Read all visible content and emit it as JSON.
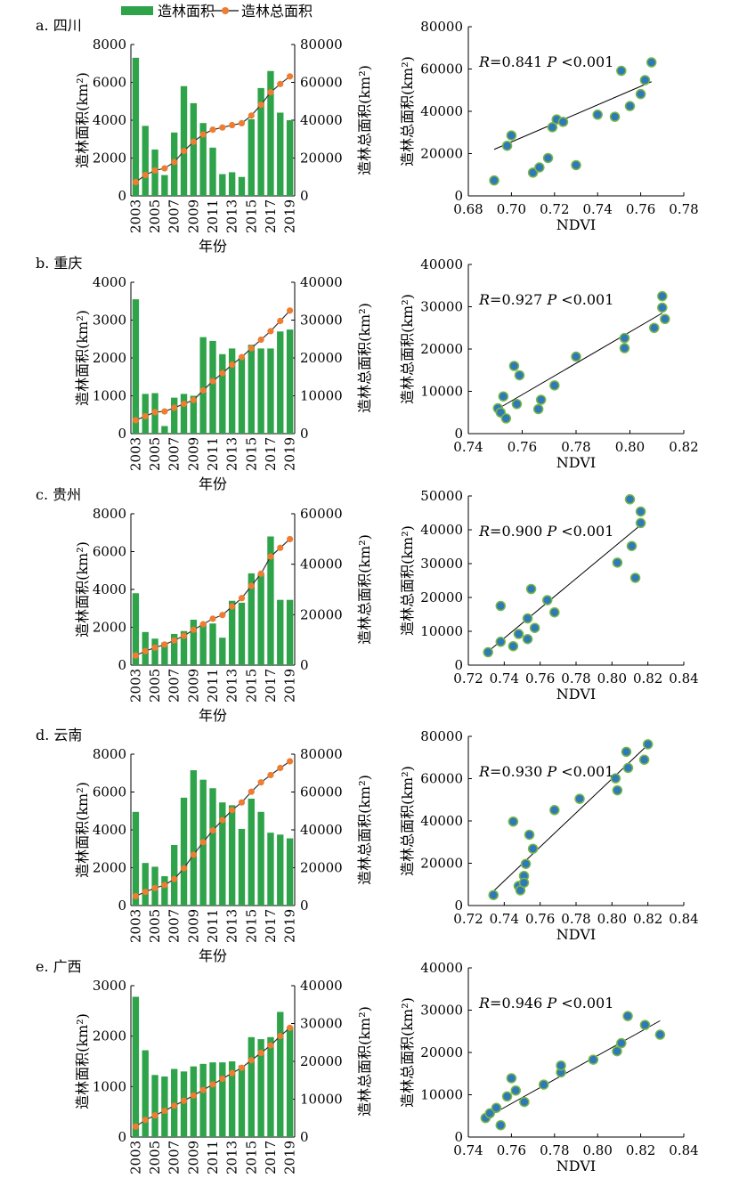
{
  "legend": {
    "bar_label": "造林面积",
    "line_label": "造林总面积",
    "bar_color": "#2ea34a",
    "line_color": "#ee7d31",
    "point_color": "#2f79b8",
    "point_edge": "#7ab843"
  },
  "chart_data": [
    {
      "type": "bar",
      "title": "a. 四川",
      "categories": [
        "2003",
        "2004",
        "2005",
        "2006",
        "2007",
        "2008",
        "2009",
        "2010",
        "2011",
        "2012",
        "2013",
        "2014",
        "2015",
        "2016",
        "2017",
        "2018",
        "2019"
      ],
      "x_tick_labels": [
        "2003",
        "2005",
        "2007",
        "2009",
        "2011",
        "2013",
        "2015",
        "2017",
        "2019"
      ],
      "xlabel": "年份",
      "ylabel": "造林面积(km²)",
      "y2label": "造林总面积(km²)",
      "ylim": [
        0,
        8000
      ],
      "yticks": [
        0,
        2000,
        4000,
        6000,
        8000
      ],
      "y2lim": [
        0,
        80000
      ],
      "y2ticks": [
        0,
        20000,
        40000,
        60000,
        80000
      ],
      "series": [
        {
          "name": "造林面积",
          "kind": "bar",
          "values": [
            7300,
            3700,
            2450,
            1100,
            3350,
            5800,
            4900,
            3850,
            2550,
            1150,
            1250,
            1000,
            4050,
            5700,
            6600,
            4400,
            4000
          ]
        },
        {
          "name": "造林总面积",
          "kind": "line",
          "values": [
            7300,
            11000,
            13450,
            14550,
            17900,
            23700,
            28600,
            32450,
            35000,
            36150,
            37400,
            38400,
            42450,
            48150,
            54750,
            59150,
            63150
          ]
        }
      ]
    },
    {
      "type": "scatter",
      "xlabel": "NDVI",
      "ylabel": "造林总面积(km²)",
      "xlim": [
        0.68,
        0.78
      ],
      "xticks": [
        "0.68",
        "0.70",
        "0.72",
        "0.74",
        "0.76",
        "0.78"
      ],
      "ylim": [
        0,
        80000
      ],
      "yticks": [
        0,
        20000,
        40000,
        60000,
        80000
      ],
      "annotation": {
        "R_label": "R",
        "R_value": "=0.841",
        "P_label": "P",
        "P_value": "<0.001"
      },
      "points": [
        [
          0.692,
          7300
        ],
        [
          0.698,
          23700
        ],
        [
          0.7,
          28600
        ],
        [
          0.71,
          11000
        ],
        [
          0.713,
          13450
        ],
        [
          0.717,
          17900
        ],
        [
          0.719,
          32450
        ],
        [
          0.721,
          36150
        ],
        [
          0.724,
          35000
        ],
        [
          0.73,
          14550
        ],
        [
          0.74,
          38400
        ],
        [
          0.748,
          37400
        ],
        [
          0.751,
          59150
        ],
        [
          0.755,
          42450
        ],
        [
          0.76,
          48150
        ],
        [
          0.762,
          54750
        ],
        [
          0.765,
          63150
        ]
      ],
      "fit": [
        [
          0.692,
          22000
        ],
        [
          0.765,
          54000
        ]
      ]
    },
    {
      "type": "bar",
      "title": "b. 重庆",
      "categories": [
        "2003",
        "2004",
        "2005",
        "2006",
        "2007",
        "2008",
        "2009",
        "2010",
        "2011",
        "2012",
        "2013",
        "2014",
        "2015",
        "2016",
        "2017",
        "2018",
        "2019"
      ],
      "x_tick_labels": [
        "2003",
        "2005",
        "2007",
        "2009",
        "2011",
        "2013",
        "2015",
        "2017",
        "2019"
      ],
      "xlabel": "年份",
      "ylabel": "造林面积(km²)",
      "y2label": "造林总面积(km²)",
      "ylim": [
        0,
        4000
      ],
      "yticks": [
        0,
        1000,
        2000,
        3000,
        4000
      ],
      "y2lim": [
        0,
        40000
      ],
      "y2ticks": [
        0,
        10000,
        20000,
        30000,
        40000
      ],
      "series": [
        {
          "name": "造林面积",
          "kind": "bar",
          "values": [
            3550,
            1050,
            1070,
            200,
            950,
            1050,
            1000,
            2550,
            2450,
            2100,
            2250,
            2000,
            2350,
            2250,
            2250,
            2700,
            2750
          ]
        },
        {
          "name": "造林总面积",
          "kind": "line",
          "values": [
            3550,
            4600,
            5670,
            5870,
            6820,
            7870,
            8870,
            11420,
            13870,
            15970,
            18220,
            20220,
            22570,
            24820,
            27070,
            29770,
            32520
          ]
        }
      ]
    },
    {
      "type": "scatter",
      "xlabel": "NDVI",
      "ylabel": "造林总面积(km²)",
      "xlim": [
        0.74,
        0.82
      ],
      "xticks": [
        "0.74",
        "0.76",
        "0.78",
        "0.80",
        "0.82"
      ],
      "ylim": [
        0,
        40000
      ],
      "yticks": [
        0,
        10000,
        20000,
        30000,
        40000
      ],
      "annotation": {
        "R_label": "R",
        "R_value": "=0.927",
        "P_label": "P",
        "P_value": "<0.001"
      },
      "points": [
        [
          0.751,
          6000
        ],
        [
          0.752,
          5000
        ],
        [
          0.753,
          8800
        ],
        [
          0.754,
          3600
        ],
        [
          0.757,
          16000
        ],
        [
          0.758,
          7000
        ],
        [
          0.759,
          13800
        ],
        [
          0.766,
          5800
        ],
        [
          0.767,
          8000
        ],
        [
          0.772,
          11400
        ],
        [
          0.78,
          18200
        ],
        [
          0.798,
          22600
        ],
        [
          0.798,
          20200
        ],
        [
          0.809,
          25000
        ],
        [
          0.812,
          32500
        ],
        [
          0.812,
          29800
        ],
        [
          0.813,
          27100
        ]
      ],
      "fit": [
        [
          0.75,
          5500
        ],
        [
          0.812,
          28500
        ]
      ]
    },
    {
      "type": "bar",
      "title": "c. 贵州",
      "categories": [
        "2003",
        "2004",
        "2005",
        "2006",
        "2007",
        "2008",
        "2009",
        "2010",
        "2011",
        "2012",
        "2013",
        "2014",
        "2015",
        "2016",
        "2017",
        "2018",
        "2019"
      ],
      "x_tick_labels": [
        "2003",
        "2005",
        "2007",
        "2009",
        "2011",
        "2013",
        "2015",
        "2017",
        "2019"
      ],
      "xlabel": "年份",
      "ylabel": "造林面积(km²)",
      "y2label": "造林总面积(km²)",
      "ylim": [
        0,
        8000
      ],
      "yticks": [
        0,
        2000,
        4000,
        6000,
        8000
      ],
      "y2lim": [
        0,
        60000
      ],
      "y2ticks": [
        0,
        20000,
        40000,
        60000
      ],
      "series": [
        {
          "name": "造林面积",
          "kind": "bar",
          "values": [
            3800,
            1750,
            1400,
            1200,
            1650,
            1800,
            2400,
            2200,
            2200,
            1450,
            3400,
            3300,
            4850,
            4850,
            6800,
            3450,
            3450
          ]
        },
        {
          "name": "造林总面积",
          "kind": "line",
          "values": [
            3800,
            5550,
            6950,
            8150,
            9800,
            11600,
            14000,
            16200,
            18400,
            19850,
            23250,
            26550,
            31400,
            36250,
            43050,
            46500,
            49950
          ]
        }
      ]
    },
    {
      "type": "scatter",
      "xlabel": "NDVI",
      "ylabel": "造林总面积(km²)",
      "xlim": [
        0.72,
        0.84
      ],
      "xticks": [
        "0.72",
        "0.74",
        "0.76",
        "0.78",
        "0.80",
        "0.82",
        "0.84"
      ],
      "ylim": [
        0,
        50000
      ],
      "yticks": [
        0,
        10000,
        20000,
        30000,
        40000,
        50000
      ],
      "annotation": {
        "R_label": "R",
        "R_value": "=0.900",
        "P_label": "P",
        "P_value": "<0.001"
      },
      "points": [
        [
          0.731,
          3800
        ],
        [
          0.738,
          17500
        ],
        [
          0.738,
          6900
        ],
        [
          0.745,
          5600
        ],
        [
          0.748,
          9200
        ],
        [
          0.753,
          13800
        ],
        [
          0.753,
          7700
        ],
        [
          0.755,
          22500
        ],
        [
          0.757,
          11000
        ],
        [
          0.764,
          19200
        ],
        [
          0.768,
          15600
        ],
        [
          0.803,
          30300
        ],
        [
          0.81,
          49000
        ],
        [
          0.811,
          35200
        ],
        [
          0.813,
          25800
        ],
        [
          0.816,
          45400
        ],
        [
          0.816,
          42000
        ]
      ],
      "fit": [
        [
          0.731,
          4000
        ],
        [
          0.815,
          41000
        ]
      ]
    },
    {
      "type": "bar",
      "title": "d. 云南",
      "categories": [
        "2003",
        "2004",
        "2005",
        "2006",
        "2007",
        "2008",
        "2009",
        "2010",
        "2011",
        "2012",
        "2013",
        "2014",
        "2015",
        "2016",
        "2017",
        "2018",
        "2019"
      ],
      "x_tick_labels": [
        "2003",
        "2005",
        "2007",
        "2009",
        "2011",
        "2013",
        "2015",
        "2017",
        "2019"
      ],
      "xlabel": "年份",
      "ylabel": "造林面积(km²)",
      "y2label": "造林总面积(km²)",
      "ylim": [
        0,
        8000
      ],
      "yticks": [
        0,
        2000,
        4000,
        6000,
        8000
      ],
      "y2lim": [
        0,
        80000
      ],
      "y2ticks": [
        0,
        20000,
        40000,
        60000,
        80000
      ],
      "series": [
        {
          "name": "造林面积",
          "kind": "bar",
          "values": [
            4950,
            2250,
            2050,
            1550,
            3200,
            5700,
            7150,
            6650,
            6200,
            5450,
            5300,
            4050,
            5650,
            4950,
            3850,
            3750,
            3550
          ]
        },
        {
          "name": "造林总面积",
          "kind": "line",
          "values": [
            4950,
            7200,
            9250,
            10800,
            14000,
            19700,
            26850,
            33500,
            39700,
            45150,
            50450,
            54500,
            60150,
            65100,
            68950,
            72700,
            76250
          ]
        }
      ]
    },
    {
      "type": "scatter",
      "xlabel": "NDVI",
      "ylabel": "造林总面积(km²)",
      "xlim": [
        0.72,
        0.84
      ],
      "xticks": [
        "0.72",
        "0.74",
        "0.76",
        "0.78",
        "0.80",
        "0.82",
        "0.84"
      ],
      "ylim": [
        0,
        80000
      ],
      "yticks": [
        0,
        20000,
        40000,
        60000,
        80000
      ],
      "annotation": {
        "R_label": "R",
        "R_value": "=0.930",
        "P_label": "P",
        "P_value": "<0.001"
      },
      "points": [
        [
          0.734,
          4950
        ],
        [
          0.745,
          39700
        ],
        [
          0.748,
          9250
        ],
        [
          0.749,
          7200
        ],
        [
          0.751,
          14000
        ],
        [
          0.751,
          10800
        ],
        [
          0.752,
          19700
        ],
        [
          0.754,
          33500
        ],
        [
          0.756,
          26850
        ],
        [
          0.768,
          45150
        ],
        [
          0.782,
          50450
        ],
        [
          0.802,
          60150
        ],
        [
          0.803,
          54500
        ],
        [
          0.808,
          72700
        ],
        [
          0.809,
          65100
        ],
        [
          0.818,
          68950
        ],
        [
          0.82,
          76250
        ]
      ],
      "fit": [
        [
          0.733,
          6000
        ],
        [
          0.82,
          76000
        ]
      ]
    },
    {
      "type": "bar",
      "title": "e. 广西",
      "categories": [
        "2003",
        "2004",
        "2005",
        "2006",
        "2007",
        "2008",
        "2009",
        "2010",
        "2011",
        "2012",
        "2013",
        "2014",
        "2015",
        "2016",
        "2017",
        "2018",
        "2019"
      ],
      "x_tick_labels": [
        "2003",
        "2005",
        "2007",
        "2009",
        "2011",
        "2013",
        "2015",
        "2017",
        "2019"
      ],
      "xlabel": "年份",
      "ylabel": "造林面积(km²)",
      "y2label": "造林总面积(km²)",
      "ylim": [
        0,
        3000
      ],
      "yticks": [
        0,
        1000,
        2000,
        3000
      ],
      "y2lim": [
        0,
        40000
      ],
      "y2ticks": [
        0,
        10000,
        20000,
        30000,
        40000
      ],
      "series": [
        {
          "name": "造林面积",
          "kind": "bar",
          "values": [
            2780,
            1720,
            1230,
            1200,
            1350,
            1300,
            1400,
            1450,
            1480,
            1480,
            1500,
            1420,
            1980,
            1940,
            1980,
            2480,
            2180
          ]
        },
        {
          "name": "造林总面积",
          "kind": "line",
          "values": [
            2780,
            4500,
            5730,
            6930,
            8280,
            9580,
            10980,
            12430,
            13910,
            15390,
            16890,
            18310,
            20290,
            22230,
            24210,
            26690,
            28870
          ]
        }
      ]
    },
    {
      "type": "scatter",
      "xlabel": "NDVI",
      "ylabel": "造林总面积(km²)",
      "xlim": [
        0.74,
        0.84
      ],
      "xticks": [
        "0.74",
        "0.76",
        "0.78",
        "0.80",
        "0.82",
        "0.84"
      ],
      "ylim": [
        0,
        40000
      ],
      "yticks": [
        0,
        10000,
        20000,
        30000,
        40000
      ],
      "annotation": {
        "R_label": "R",
        "R_value": "=0.946",
        "P_label": "P",
        "P_value": "<0.001"
      },
      "points": [
        [
          0.748,
          4500
        ],
        [
          0.75,
          5600
        ],
        [
          0.753,
          6900
        ],
        [
          0.755,
          2800
        ],
        [
          0.758,
          9600
        ],
        [
          0.76,
          13900
        ],
        [
          0.762,
          11000
        ],
        [
          0.766,
          8300
        ],
        [
          0.775,
          12400
        ],
        [
          0.783,
          15300
        ],
        [
          0.783,
          16900
        ],
        [
          0.798,
          18300
        ],
        [
          0.809,
          20300
        ],
        [
          0.811,
          22200
        ],
        [
          0.814,
          28600
        ],
        [
          0.822,
          26500
        ],
        [
          0.829,
          24200
        ]
      ],
      "fit": [
        [
          0.748,
          4500
        ],
        [
          0.829,
          27500
        ]
      ]
    }
  ]
}
